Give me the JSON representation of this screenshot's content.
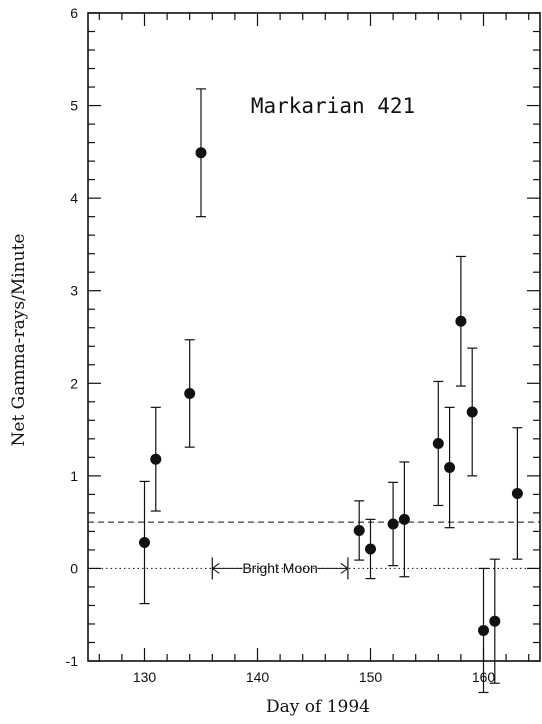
{
  "chart_data": {
    "type": "scatter",
    "title": "Markarian 421",
    "xlabel": "Day of 1994",
    "ylabel": "Net Gamma-rays/Minute",
    "xlim": [
      125,
      165
    ],
    "ylim": [
      -1,
      6
    ],
    "xticks": [
      "130",
      "140",
      "150",
      "160"
    ],
    "yticks": [
      "-1",
      "0",
      "1",
      "2",
      "3",
      "4",
      "5",
      "6"
    ],
    "grid": false,
    "points": [
      {
        "x": 130,
        "y": 0.28,
        "err": 0.66
      },
      {
        "x": 131,
        "y": 1.18,
        "err": 0.56
      },
      {
        "x": 134,
        "y": 1.89,
        "err": 0.58
      },
      {
        "x": 135,
        "y": 4.49,
        "err": 0.69
      },
      {
        "x": 149,
        "y": 0.41,
        "err": 0.32
      },
      {
        "x": 150,
        "y": 0.21,
        "err": 0.32
      },
      {
        "x": 152,
        "y": 0.48,
        "err": 0.45
      },
      {
        "x": 153,
        "y": 0.53,
        "err": 0.62
      },
      {
        "x": 156,
        "y": 1.35,
        "err": 0.67
      },
      {
        "x": 157,
        "y": 1.09,
        "err": 0.65
      },
      {
        "x": 158,
        "y": 2.67,
        "err": 0.7
      },
      {
        "x": 159,
        "y": 1.69,
        "err": 0.69
      },
      {
        "x": 160,
        "y": -0.67,
        "err": 0.67
      },
      {
        "x": 161,
        "y": -0.57,
        "err": 0.67
      },
      {
        "x": 163,
        "y": 0.81,
        "err": 0.71
      }
    ],
    "reference_lines": [
      {
        "style": "dashed",
        "y": 0.5
      },
      {
        "style": "dotted",
        "y": 0
      }
    ],
    "annotation": {
      "text": "Bright Moon",
      "x_start": 136,
      "x_end": 148,
      "y": 0
    }
  }
}
